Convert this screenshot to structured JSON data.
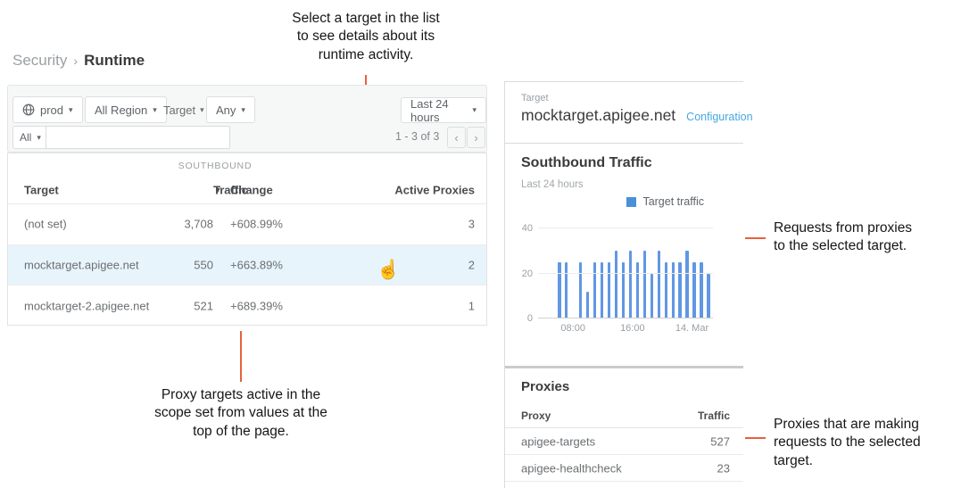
{
  "annotations": {
    "top": "Select a target in the list\nto see details about its\nruntime activity.",
    "bottom": "Proxy targets active in the\nscope set from values at the\ntop of the page.",
    "right_top": "Requests from proxies\nto the selected target.",
    "right_bottom": "Proxies that are making\nrequests to the selected\ntarget."
  },
  "breadcrumb": {
    "parent": "Security",
    "separator": "›",
    "current": "Runtime"
  },
  "icons": {
    "caret_down": "▾",
    "sort_desc": "▾",
    "chevron_left": "‹",
    "chevron_right": "›",
    "hand_cursor": "☝"
  },
  "filters": {
    "environment": "prod",
    "region": "All Region",
    "target_type": "Target",
    "any": "Any",
    "scope": "All",
    "search_value": "",
    "time_range": "Last 24 hours",
    "pagination_text": "1 - 3 of 3"
  },
  "table": {
    "group_header": "SOUTHBOUND",
    "columns": {
      "target": "Target",
      "traffic": "Traffic",
      "change": "Change",
      "active_proxies": "Active Proxies"
    },
    "rows": [
      {
        "target": "(not set)",
        "traffic": "3,708",
        "change": "+608.99%",
        "active_proxies": "3",
        "selected": false
      },
      {
        "target": "mocktarget.apigee.net",
        "traffic": "550",
        "change": "+663.89%",
        "active_proxies": "2",
        "selected": true
      },
      {
        "target": "mocktarget-2.apigee.net",
        "traffic": "521",
        "change": "+689.39%",
        "active_proxies": "1",
        "selected": false
      }
    ]
  },
  "detail": {
    "target_label": "Target",
    "target_name": "mocktarget.apigee.net",
    "configuration_link": "Configuration",
    "section_title": "Southbound Traffic",
    "subtitle": "Last 24 hours",
    "legend_label": "Target traffic"
  },
  "chart_data": {
    "type": "bar",
    "title": "Southbound Traffic",
    "subtitle": "Last 24 hours",
    "legend": [
      "Target traffic"
    ],
    "series": [
      {
        "name": "Target traffic",
        "values": [
          25,
          25,
          null,
          25,
          12,
          25,
          25,
          25,
          30,
          25,
          30,
          25,
          30,
          20,
          30,
          25,
          25,
          25,
          30,
          25,
          25,
          20
        ]
      }
    ],
    "x_ticks": [
      "08:00",
      "16:00",
      "14. Mar"
    ],
    "x_tick_pos_pct": [
      20,
      54,
      88
    ],
    "y_ticks": [
      0,
      20,
      40
    ],
    "ylim": [
      0,
      40
    ],
    "grid": true,
    "legend_position": "top-right",
    "bar_color": "#6197e3",
    "legend_color": "#4a90d9"
  },
  "proxies": {
    "title": "Proxies",
    "columns": {
      "proxy": "Proxy",
      "traffic": "Traffic"
    },
    "rows": [
      {
        "proxy": "apigee-targets",
        "traffic": "527"
      },
      {
        "proxy": "apigee-healthcheck",
        "traffic": "23"
      }
    ]
  },
  "colors": {
    "accent_orange": "#e8603c",
    "selected_row": "#e8f4fb",
    "link_blue": "#44a8e0",
    "bar_blue": "#6197e3",
    "panel_gray": "#f6f7f7"
  }
}
